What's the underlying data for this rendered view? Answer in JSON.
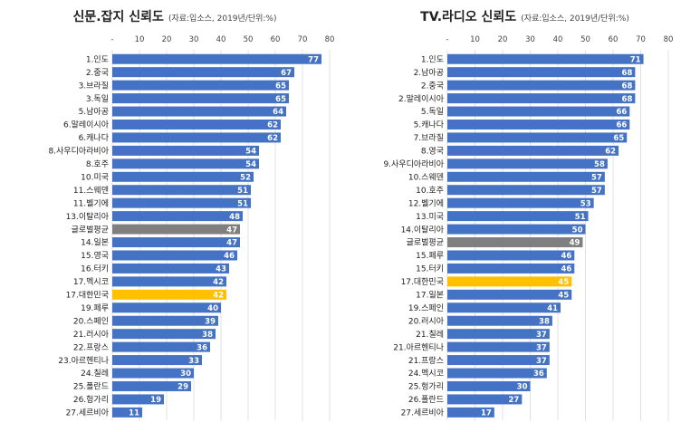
{
  "chart_data": [
    {
      "type": "bar",
      "orientation": "horizontal",
      "title": "신문.잡지 신뢰도",
      "subtitle": "(자료:입소스, 2019년/단위:%)",
      "x_ticks": [
        "-",
        "10",
        "20",
        "30",
        "40",
        "50",
        "60",
        "70",
        "80"
      ],
      "xlim": [
        0,
        80
      ],
      "grid": true,
      "categories": [
        "1.인도",
        "2.중국",
        "3.브라질",
        "3.독일",
        "5.남아공",
        "6.말레이시아",
        "6.캐나다",
        "8.사우디아라비아",
        "8.호주",
        "10.미국",
        "11.스웨덴",
        "11.벨기에",
        "13.이탈리아",
        "글로벌평균",
        "14.일본",
        "15.영국",
        "16.터키",
        "17.멕시코",
        "17.대한민국",
        "19.페루",
        "20.스페인",
        "21.러시아",
        "22.프랑스",
        "23.아르헨티나",
        "24.칠레",
        "25.폴란드",
        "26.헝가리",
        "27.세르비아"
      ],
      "values": [
        77,
        67,
        65,
        65,
        64,
        62,
        62,
        54,
        54,
        52,
        51,
        51,
        48,
        47,
        47,
        46,
        43,
        42,
        42,
        40,
        39,
        38,
        36,
        33,
        30,
        29,
        19,
        11
      ],
      "colors": {
        "default": "#4472C4",
        "global": "#7F7F7F",
        "korea": "#FFC000"
      },
      "highlights": {
        "글로벌평균": "global",
        "17.대한민국": "korea"
      }
    },
    {
      "type": "bar",
      "orientation": "horizontal",
      "title": "TV.라디오 신뢰도",
      "subtitle": "(자료:입소스, 2019년/단위:%)",
      "x_ticks": [
        "-",
        "10",
        "20",
        "30",
        "40",
        "50",
        "60",
        "70",
        "80"
      ],
      "xlim": [
        0,
        80
      ],
      "grid": true,
      "categories": [
        "1.인도",
        "2.남아공",
        "2.중국",
        "2.말레이시아",
        "5.독일",
        "5.캐나다",
        "7.브라질",
        "8.영국",
        "9.사우디아라비아",
        "10.스웨덴",
        "10.호주",
        "12.벨기에",
        "13.미국",
        "14.이탈리아",
        "글로벌평균",
        "15.페루",
        "15.터키",
        "17.대한민국",
        "17.일본",
        "19.스페인",
        "20.러시아",
        "21.칠레",
        "21.아르헨티나",
        "21.프랑스",
        "24.멕시코",
        "25.헝가리",
        "26.폴란드",
        "27.세르비아"
      ],
      "values": [
        71,
        68,
        68,
        68,
        66,
        66,
        65,
        62,
        58,
        57,
        57,
        53,
        51,
        50,
        49,
        46,
        46,
        45,
        45,
        41,
        38,
        37,
        37,
        37,
        36,
        30,
        27,
        17
      ],
      "colors": {
        "default": "#4472C4",
        "global": "#7F7F7F",
        "korea": "#FFC000"
      },
      "highlights": {
        "글로벌평균": "global",
        "17.대한민국": "korea"
      }
    }
  ]
}
